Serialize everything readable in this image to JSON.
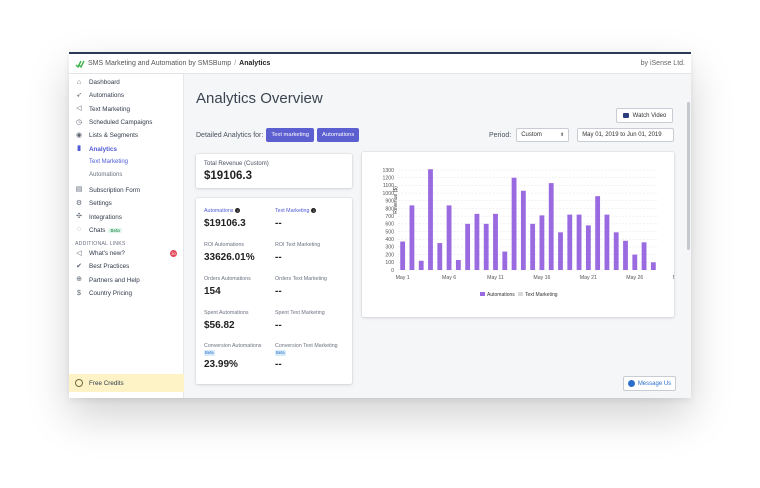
{
  "topbar": {
    "app_name": "SMS Marketing and Automation by SMSBump",
    "separator": "/",
    "current_page": "Analytics",
    "vendor": "by iSense Ltd."
  },
  "sidebar": {
    "items": [
      {
        "label": "Dashboard",
        "icon": "home-icon"
      },
      {
        "label": "Automations",
        "icon": "rocket-icon"
      },
      {
        "label": "Text Marketing",
        "icon": "megaphone-icon"
      },
      {
        "label": "Scheduled Campaigns",
        "icon": "clock-icon"
      },
      {
        "label": "Lists & Segments",
        "icon": "person-icon"
      },
      {
        "label": "Analytics",
        "icon": "bar-chart-icon"
      }
    ],
    "analytics_sub": [
      "Text Marketing",
      "Automations"
    ],
    "items2": [
      {
        "label": "Subscription Form",
        "icon": "form-icon"
      },
      {
        "label": "Settings",
        "icon": "gear-icon"
      },
      {
        "label": "Integrations",
        "icon": "integrations-icon"
      },
      {
        "label": "Chats",
        "icon": "chat-icon",
        "badge": "Beta"
      }
    ],
    "additional_heading": "ADDITIONAL LINKS",
    "additional": [
      {
        "label": "What's new?",
        "icon": "megaphone-icon",
        "count": "30"
      },
      {
        "label": "Best Practices",
        "icon": "checkmark-icon"
      },
      {
        "label": "Partners and Help",
        "icon": "circle-plus-icon"
      },
      {
        "label": "Country Pricing",
        "icon": "dollar-icon"
      }
    ],
    "free_credits": "Free Credits"
  },
  "main": {
    "title": "Analytics Overview",
    "watch_video": "Watch Video",
    "detailed_label": "Detailed Analytics for:",
    "detailed_buttons": [
      "Text marketing",
      "Automations"
    ],
    "period_label": "Period:",
    "period_value": "Custom",
    "date_range": "May 01, 2019 to Jun 01, 2019",
    "total_revenue_label": "Total Revenue (Custom)",
    "total_revenue_value": "$19106.3",
    "stats": {
      "automations_label": "Automations",
      "automations_value": "$19106.3",
      "text_marketing_label": "Text Marketing",
      "text_marketing_value": "--",
      "roi_automations_label": "ROI Automations",
      "roi_automations_value": "33626.01%",
      "roi_text_label": "ROI Text Marketing",
      "roi_text_value": "--",
      "orders_automations_label": "Orders Automations",
      "orders_automations_value": "154",
      "orders_text_label": "Orders Text Marketing",
      "orders_text_value": "--",
      "spent_automations_label": "Spent Automations",
      "spent_automations_value": "$56.82",
      "spent_text_label": "Spent Text Marketing",
      "spent_text_value": "--",
      "conversion_automations_label": "Conversion Automations",
      "conversion_automations_value": "23.99%",
      "conversion_text_label": "Conversion Text Marketing",
      "conversion_text_value": "--",
      "beta": "Beta"
    },
    "message_us": "Message Us"
  },
  "colors": {
    "accent": "#5c5fcf",
    "bar": "#9a6be0",
    "text_marketing_swatch": "#d9d9d9"
  },
  "chart_data": {
    "type": "bar",
    "ylabel": "Revenue ($)",
    "ylim": [
      0,
      1300
    ],
    "yticks": [
      0,
      100,
      200,
      300,
      400,
      500,
      600,
      700,
      800,
      900,
      1000,
      1100,
      1200,
      1300
    ],
    "xticks": [
      "May 1",
      "May 6",
      "May 11",
      "May 16",
      "May 21",
      "May 26",
      "May 31"
    ],
    "grid": true,
    "legend_position": "bottom",
    "series": [
      {
        "name": "Automations",
        "values": [
          370,
          840,
          120,
          1310,
          350,
          840,
          130,
          600,
          730,
          600,
          730,
          240,
          1200,
          1030,
          600,
          710,
          1130,
          490,
          720,
          720,
          580,
          960,
          720,
          490,
          380,
          200,
          360,
          100
        ]
      },
      {
        "name": "Text Marketing",
        "values": [
          0,
          0,
          0,
          0,
          0,
          0,
          0,
          0,
          0,
          0,
          0,
          0,
          0,
          0,
          0,
          0,
          0,
          0,
          0,
          0,
          0,
          0,
          0,
          0,
          0,
          0,
          0,
          0
        ]
      }
    ]
  }
}
